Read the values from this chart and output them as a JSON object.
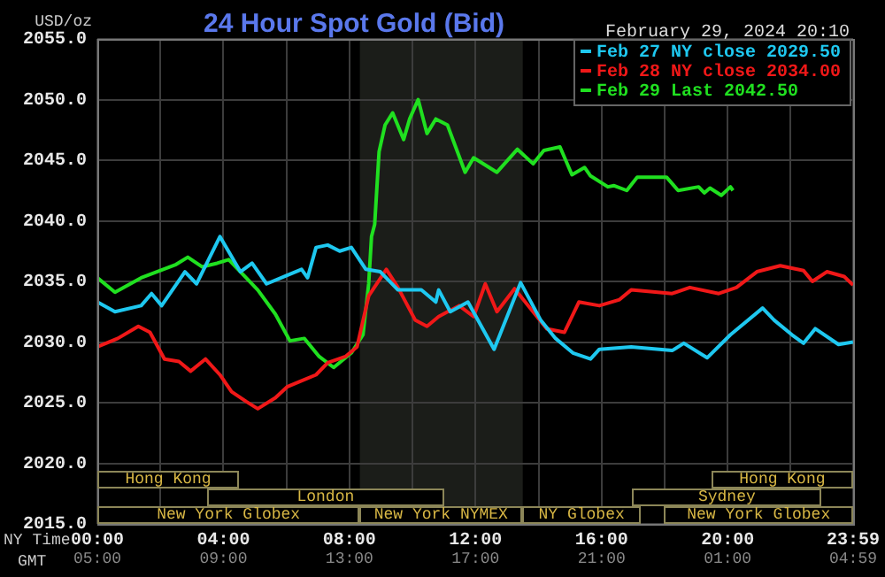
{
  "chart_data": {
    "type": "line",
    "title": "24 Hour Spot Gold (Bid)",
    "subtitle": "February 29, 2024 20:10",
    "ylabel": "USD/oz",
    "xlabel": "NY Time",
    "x2label": "GMT",
    "xlim": [
      0,
      23.983
    ],
    "x2lim": [
      "2024-02-29T05:00",
      "2024-03-01T04:59"
    ],
    "xticks": [
      {
        "value": 0,
        "label": "00:00"
      },
      {
        "value": 2,
        "label": null
      },
      {
        "value": 4,
        "label": "04:00"
      },
      {
        "value": 6,
        "label": null
      },
      {
        "value": 8,
        "label": "08:00"
      },
      {
        "value": 10,
        "label": null
      },
      {
        "value": 12,
        "label": "12:00"
      },
      {
        "value": 14,
        "label": null
      },
      {
        "value": 16,
        "label": "16:00"
      },
      {
        "value": 18,
        "label": null
      },
      {
        "value": 20,
        "label": "20:00"
      },
      {
        "value": 22,
        "label": null
      },
      {
        "value": 23.983,
        "label": "23:59"
      }
    ],
    "x2ticks": [
      {
        "value": "2024-02-29T05:00",
        "label": "05:00"
      },
      {
        "value": "2024-02-29T09:00",
        "label": "09:00"
      },
      {
        "value": "2024-02-29T13:00",
        "label": "13:00"
      },
      {
        "value": "2024-02-29T17:00",
        "label": "17:00"
      },
      {
        "value": "2024-02-29T21:00",
        "label": "21:00"
      },
      {
        "value": "2024-03-01T01:00",
        "label": "01:00"
      },
      {
        "value": "2024-03-01T04:59",
        "label": "04:59"
      }
    ],
    "ylim": [
      2015,
      2055
    ],
    "yticks": [
      {
        "value": 2015,
        "label": "2015.0"
      },
      {
        "value": 2020,
        "label": "2020.0"
      },
      {
        "value": 2025,
        "label": "2025.0"
      },
      {
        "value": 2030,
        "label": "2030.0"
      },
      {
        "value": 2035,
        "label": "2035.0"
      },
      {
        "value": 2040,
        "label": "2040.0"
      },
      {
        "value": 2045,
        "label": "2045.0"
      },
      {
        "value": 2050,
        "label": "2050.0"
      },
      {
        "value": 2055,
        "label": "2055.0"
      }
    ],
    "grid": true,
    "legend": "top right",
    "bands": [
      {
        "axis": "x",
        "from": 8.33,
        "to": 13.5,
        "label": null,
        "color": "#1b1d19"
      }
    ],
    "annotations": [
      "Hong Kong",
      "Hong Kong",
      "London",
      "Sydney",
      "New York Globex",
      "New York NYMEX",
      "NY Globex",
      "New York Globex"
    ],
    "series": [
      {
        "name": "Feb 27 NY close 2029.50",
        "color": "#1ec8f0",
        "x": [
          0,
          0.56,
          1.39,
          1.72,
          2.04,
          2.78,
          3.15,
          3.89,
          4.54,
          4.91,
          5.37,
          6.02,
          6.48,
          6.67,
          6.94,
          7.31,
          7.69,
          8.06,
          8.52,
          8.98,
          9.54,
          10.28,
          10.74,
          10.83,
          11.2,
          11.76,
          12.59,
          13.43,
          14.07,
          14.54,
          15.09,
          15.65,
          15.93,
          16.94,
          18.24,
          18.61,
          19.35,
          20.09,
          21.11,
          21.48,
          22.04,
          22.41,
          22.78,
          23.52,
          23.98
        ],
        "values": [
          2033.3,
          2032.5,
          2033.0,
          2034.0,
          2033.0,
          2035.8,
          2034.8,
          2038.7,
          2035.8,
          2036.5,
          2034.8,
          2035.5,
          2036.0,
          2035.3,
          2037.8,
          2038.0,
          2037.5,
          2037.8,
          2036.0,
          2035.8,
          2034.3,
          2034.3,
          2033.3,
          2034.3,
          2032.5,
          2033.3,
          2029.4,
          2034.9,
          2031.8,
          2030.3,
          2029.1,
          2028.6,
          2029.4,
          2029.6,
          2029.3,
          2029.9,
          2028.7,
          2030.6,
          2032.8,
          2031.8,
          2030.6,
          2029.9,
          2031.1,
          2029.8,
          2030.0
        ]
      },
      {
        "name": "Feb 28 NY close 2034.00",
        "color": "#f01818",
        "x": [
          0,
          0.65,
          1.3,
          1.67,
          2.13,
          2.59,
          2.96,
          3.43,
          3.89,
          4.26,
          4.72,
          5.09,
          5.65,
          6.02,
          6.39,
          6.94,
          7.31,
          7.87,
          8.24,
          8.61,
          9.17,
          9.54,
          10.09,
          10.46,
          10.83,
          11.48,
          11.94,
          12.31,
          12.68,
          13.24,
          14.26,
          14.82,
          15.28,
          15.93,
          16.57,
          16.94,
          18.24,
          18.8,
          19.72,
          20.28,
          20.93,
          21.67,
          22.41,
          22.69,
          23.15,
          23.7,
          23.98
        ],
        "values": [
          2029.6,
          2030.3,
          2031.3,
          2030.8,
          2028.6,
          2028.4,
          2027.6,
          2028.6,
          2027.3,
          2025.9,
          2025.1,
          2024.5,
          2025.4,
          2026.3,
          2026.7,
          2027.3,
          2028.3,
          2028.8,
          2029.6,
          2033.8,
          2036.0,
          2034.5,
          2031.8,
          2031.3,
          2032.1,
          2033.0,
          2032.1,
          2034.8,
          2032.5,
          2034.4,
          2031.1,
          2030.8,
          2033.3,
          2033.0,
          2033.5,
          2034.3,
          2034.0,
          2034.5,
          2034.0,
          2034.5,
          2035.8,
          2036.3,
          2035.9,
          2035.0,
          2035.8,
          2035.4,
          2034.7
        ]
      },
      {
        "name": "Feb 29 Last 2042.50",
        "color": "#20e020",
        "x": [
          0,
          0.56,
          1.39,
          2.5,
          2.87,
          3.33,
          3.8,
          4.17,
          4.54,
          5.09,
          5.65,
          6.11,
          6.57,
          7.04,
          7.5,
          8.06,
          8.43,
          8.61,
          8.7,
          8.8,
          8.94,
          9.13,
          9.37,
          9.72,
          9.91,
          10.18,
          10.46,
          10.74,
          11.11,
          11.67,
          11.94,
          12.68,
          13.33,
          13.83,
          14.17,
          14.68,
          15.06,
          15.46,
          15.65,
          16.2,
          16.4,
          16.8,
          17.13,
          18.06,
          18.43,
          19.08,
          19.26,
          19.44,
          19.8,
          20.09,
          20.17
        ],
        "values": [
          2035.3,
          2034.1,
          2035.3,
          2036.4,
          2037.0,
          2036.2,
          2036.5,
          2036.8,
          2035.8,
          2034.3,
          2032.3,
          2030.1,
          2030.3,
          2028.8,
          2027.9,
          2029.1,
          2030.6,
          2034.8,
          2038.7,
          2039.7,
          2045.7,
          2047.9,
          2048.9,
          2046.7,
          2048.4,
          2050.0,
          2047.2,
          2048.4,
          2047.9,
          2044.0,
          2045.2,
          2044.0,
          2045.9,
          2044.7,
          2045.8,
          2046.1,
          2043.8,
          2044.4,
          2043.7,
          2042.8,
          2042.9,
          2042.5,
          2043.6,
          2043.6,
          2042.5,
          2042.8,
          2042.3,
          2042.7,
          2042.1,
          2042.8,
          2042.5
        ]
      }
    ]
  }
}
